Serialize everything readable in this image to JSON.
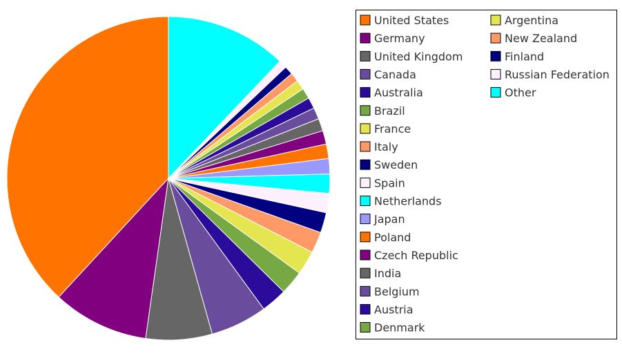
{
  "chart_data": {
    "type": "pie",
    "title": "",
    "legend_position": "right",
    "start_angle": "12 o'clock",
    "direction": "counter-clockwise",
    "slices": [
      {
        "label": "United States",
        "value": 39.65,
        "color": "#ff7300"
      },
      {
        "label": "Germany",
        "value": 10.0,
        "color": "#800080"
      },
      {
        "label": "United Kingdom",
        "value": 6.9,
        "color": "#666666"
      },
      {
        "label": "Canada",
        "value": 5.9,
        "color": "#6a4c9c"
      },
      {
        "label": "Australia",
        "value": 2.7,
        "color": "#2a0b9a"
      },
      {
        "label": "Brazil",
        "value": 2.5,
        "color": "#76a844"
      },
      {
        "label": "France",
        "value": 2.5,
        "color": "#e5e550"
      },
      {
        "label": "Italy",
        "value": 2.2,
        "color": "#ff9966"
      },
      {
        "label": "Sweden",
        "value": 2.1,
        "color": "#000080"
      },
      {
        "label": "Spain",
        "value": 2.0,
        "color": "#fff0ff"
      },
      {
        "label": "Netherlands",
        "value": 2.0,
        "color": "#00ffff"
      },
      {
        "label": "Japan",
        "value": 1.6,
        "color": "#9999ff"
      },
      {
        "label": "Poland",
        "value": 1.5,
        "color": "#ff7300"
      },
      {
        "label": "Czech Republic",
        "value": 1.4,
        "color": "#800080"
      },
      {
        "label": "India",
        "value": 1.3,
        "color": "#666666"
      },
      {
        "label": "Belgium",
        "value": 1.2,
        "color": "#6a4c9c"
      },
      {
        "label": "Austria",
        "value": 1.15,
        "color": "#2a0b9a"
      },
      {
        "label": "Denmark",
        "value": 1.1,
        "color": "#76a844"
      },
      {
        "label": "Argentina",
        "value": 1.0,
        "color": "#e5e550"
      },
      {
        "label": "New Zealand",
        "value": 0.95,
        "color": "#ff9966"
      },
      {
        "label": "Finland",
        "value": 0.9,
        "color": "#000080"
      },
      {
        "label": "Russian Federation",
        "value": 0.85,
        "color": "#fff0ff"
      },
      {
        "label": "Other",
        "value": 12.6,
        "color": "#00ffff"
      }
    ]
  }
}
